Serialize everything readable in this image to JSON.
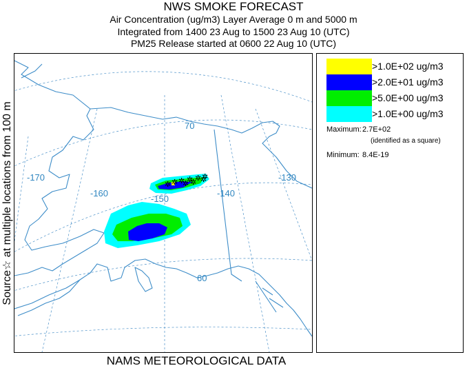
{
  "header": {
    "title": "NWS SMOKE FORECAST",
    "line1": "Air Concentration (ug/m3) Layer Average    0 m and  5000 m",
    "line2": "Integrated from 1400 23 Aug to 1500 23 Aug 10 (UTC)",
    "line3": "PM25 Release started at 0600 22 Aug 10 (UTC)"
  },
  "side_label": "Source☆  at multiple locations   from  100 m",
  "footer": "NAMS METEOROLOGICAL DATA",
  "map": {
    "longitude_labels": [
      "-170",
      "-160",
      "-150",
      "-140",
      "-130"
    ],
    "latitude_labels": [
      "70",
      "60"
    ],
    "colors": {
      "coast": "#3c8cc8",
      "grid": "#4a90c8",
      "label": "#2f86c0",
      "border": "#3c8cc8"
    }
  },
  "legend": {
    "items": [
      {
        "label": ">1.0E+02 ug/m3",
        "color": "#ffff00"
      },
      {
        "label": ">2.0E+01 ug/m3",
        "color": "#0000ff"
      },
      {
        "label": ">5.0E+00 ug/m3",
        "color": "#00ee00"
      },
      {
        "label": ">1.0E+00 ug/m3",
        "color": "#00ffff"
      }
    ],
    "maximum_label": "Maximum:",
    "maximum_value": "2.7E+02",
    "maximum_note": "(identified as a square)",
    "minimum_label": "Minimum:",
    "minimum_value": "8.4E-19"
  }
}
